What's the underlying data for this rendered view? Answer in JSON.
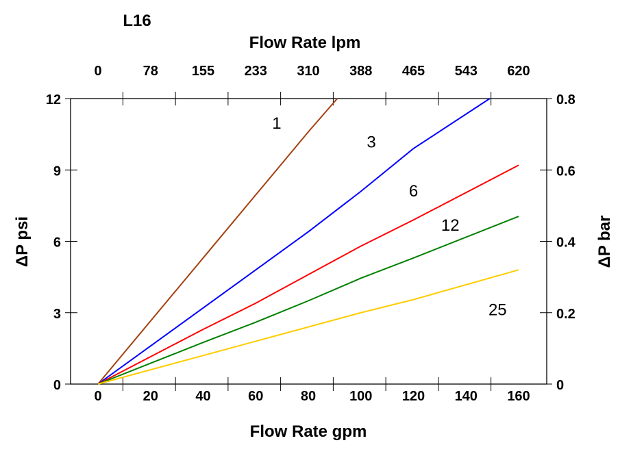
{
  "chart_data": {
    "type": "line",
    "title": "L16",
    "xlabel": "Flow Rate gpm",
    "x2label": "Flow Rate lpm",
    "ylabel": "ΔP psi",
    "y2label": "ΔP bar",
    "xlim": [
      -10.5,
      171
    ],
    "ylim": [
      0,
      12
    ],
    "x_ticks": [
      "0",
      "20",
      "40",
      "60",
      "80",
      "100",
      "120",
      "140",
      "160"
    ],
    "x_tick_values": [
      0,
      20,
      40,
      60,
      80,
      100,
      120,
      140,
      160
    ],
    "x2_ticks": [
      "0",
      "78",
      "155",
      "233",
      "310",
      "388",
      "465",
      "543",
      "620"
    ],
    "y_ticks": [
      "0",
      "3",
      "6",
      "9",
      "12"
    ],
    "y_tick_values": [
      0,
      3,
      6,
      9,
      12
    ],
    "y2_ticks": [
      "0",
      "0.2",
      "0.4",
      "0.6",
      "0.8"
    ],
    "grid": false,
    "series": [
      {
        "label": "1",
        "color": "#a3410f",
        "label_at": [
          68,
          11.0
        ],
        "x": [
          0,
          40,
          80,
          91
        ],
        "y": [
          0,
          5.3,
          10.6,
          12
        ]
      },
      {
        "label": "3",
        "color": "#0000ff",
        "label_at": [
          104,
          10.2
        ],
        "x": [
          0,
          40,
          80,
          100,
          120,
          149
        ],
        "y": [
          0,
          3.2,
          6.4,
          8.1,
          9.9,
          12
        ]
      },
      {
        "label": "6",
        "color": "#ff0000",
        "label_at": [
          120,
          8.15
        ],
        "x": [
          0,
          40,
          60,
          80,
          100,
          120,
          160
        ],
        "y": [
          0,
          2.3,
          3.4,
          4.6,
          5.8,
          6.9,
          9.2
        ]
      },
      {
        "label": "12",
        "color": "#008000",
        "label_at": [
          134,
          6.7
        ],
        "x": [
          0,
          40,
          60,
          80,
          100,
          120,
          160
        ],
        "y": [
          0,
          1.75,
          2.6,
          3.5,
          4.45,
          5.3,
          7.05
        ]
      },
      {
        "label": "25",
        "color": "#ffcc00",
        "label_at": [
          152,
          3.15
        ],
        "x": [
          0,
          40,
          60,
          80,
          100,
          120,
          160
        ],
        "y": [
          0,
          1.2,
          1.8,
          2.4,
          3.0,
          3.55,
          4.8
        ]
      }
    ]
  }
}
